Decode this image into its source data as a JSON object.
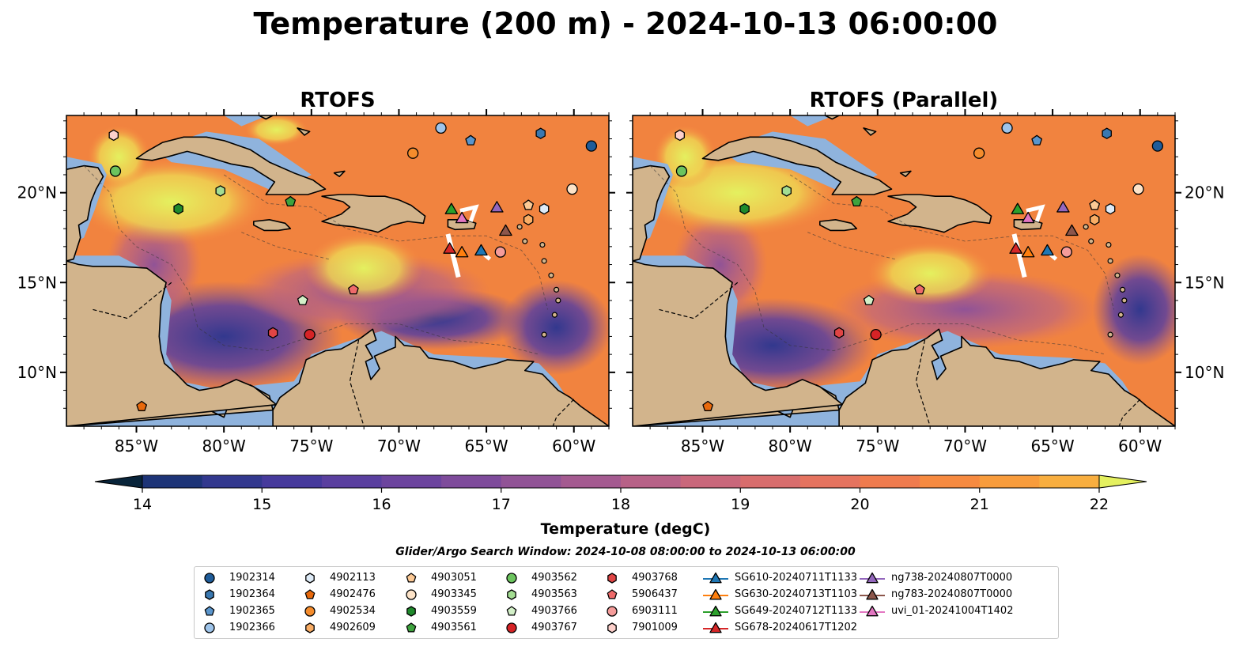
{
  "title": "Temperature (200 m) - 2024-10-13 06:00:00",
  "panels": [
    {
      "title": "RTOFS"
    },
    {
      "title": "RTOFS (Parallel)"
    }
  ],
  "map": {
    "lon_range": [
      -89,
      -58
    ],
    "lat_range": [
      7,
      24.3
    ],
    "x_ticks": [
      "85°W",
      "80°W",
      "75°W",
      "70°W",
      "65°W",
      "60°W"
    ],
    "y_ticks": [
      "10°N",
      "15°N",
      "20°N"
    ],
    "colors": {
      "land": "#d2b48c",
      "shelf": "#8fb3dd",
      "deep": "#062133"
    }
  },
  "colorbar": {
    "label": "Temperature (degC)",
    "ticks": [
      "14",
      "15",
      "16",
      "17",
      "18",
      "19",
      "20",
      "21",
      "22"
    ],
    "min": 14,
    "max": 22,
    "colors": [
      "#08243a",
      "#0e2c55",
      "#1d3477",
      "#32388e",
      "#463a9c",
      "#5a3f9f",
      "#6c449e",
      "#7e4b9b",
      "#915396",
      "#a45a90",
      "#b76187",
      "#c9677b",
      "#d86d6d",
      "#e5735f",
      "#ef7b4e",
      "#f68a40",
      "#f89c3c",
      "#f8ae3f",
      "#f5c247",
      "#efd853",
      "#e4f05f"
    ]
  },
  "search_window": "Glider/Argo Search Window: 2024-10-08 08:00:00 to 2024-10-13 06:00:00",
  "legend": [
    {
      "label": "1902314",
      "shape": "circle",
      "color": "#1f5c99"
    },
    {
      "label": "1902364",
      "shape": "hexagon",
      "color": "#3a78b0"
    },
    {
      "label": "1902365",
      "shape": "pentagon",
      "color": "#5a95cc"
    },
    {
      "label": "1902366",
      "shape": "circle",
      "color": "#9ec4ea"
    },
    {
      "label": "4902113",
      "shape": "hexagon",
      "color": "#deebf7"
    },
    {
      "label": "4902476",
      "shape": "pentagon",
      "color": "#e8690c"
    },
    {
      "label": "4902534",
      "shape": "circle",
      "color": "#f58c2c"
    },
    {
      "label": "4902609",
      "shape": "hexagon",
      "color": "#f9ad65"
    },
    {
      "label": "4903051",
      "shape": "pentagon",
      "color": "#fcc995"
    },
    {
      "label": "4903345",
      "shape": "circle",
      "color": "#fde3c8"
    },
    {
      "label": "4903559",
      "shape": "hexagon",
      "color": "#1f8a2c"
    },
    {
      "label": "4903561",
      "shape": "pentagon",
      "color": "#3ea33e"
    },
    {
      "label": "4903562",
      "shape": "circle",
      "color": "#6cc45e"
    },
    {
      "label": "4903563",
      "shape": "hexagon",
      "color": "#a3dd92"
    },
    {
      "label": "4903766",
      "shape": "pentagon",
      "color": "#d3f0c8"
    },
    {
      "label": "4903767",
      "shape": "circle",
      "color": "#d62326"
    },
    {
      "label": "4903768",
      "shape": "hexagon",
      "color": "#e04545"
    },
    {
      "label": "5906437",
      "shape": "pentagon",
      "color": "#ee6a6a"
    },
    {
      "label": "6903111",
      "shape": "circle",
      "color": "#f59c9a"
    },
    {
      "label": "7901009",
      "shape": "hexagon",
      "color": "#fdd0cb"
    },
    {
      "label": "SG610-20240711T1133",
      "shape": "triangle",
      "color": "#1f77b4"
    },
    {
      "label": "SG630-20240713T1103",
      "shape": "triangle",
      "color": "#ff7f0e"
    },
    {
      "label": "SG649-20240712T1133",
      "shape": "triangle",
      "color": "#2ca02c"
    },
    {
      "label": "SG678-20240617T1202",
      "shape": "triangle",
      "color": "#d62728"
    },
    {
      "label": "ng738-20240807T0000",
      "shape": "triangle",
      "color": "#9467bd"
    },
    {
      "label": "ng783-20240807T0000",
      "shape": "triangle",
      "color": "#8c564b"
    },
    {
      "label": "uvi_01-20241004T1402",
      "shape": "triangle",
      "color": "#e377c2"
    }
  ],
  "floats": [
    {
      "id": "1902314",
      "lon": -59,
      "lat": 22.6
    },
    {
      "id": "1902364",
      "lon": -61.9,
      "lat": 23.3
    },
    {
      "id": "1902365",
      "lon": -65.9,
      "lat": 22.9
    },
    {
      "id": "1902366",
      "lon": -67.6,
      "lat": 23.6
    },
    {
      "id": "4902113",
      "lon": -61.7,
      "lat": 19.1
    },
    {
      "id": "4902476",
      "lon": -84.7,
      "lat": 8.1
    },
    {
      "id": "4902534",
      "lon": -69.2,
      "lat": 22.2
    },
    {
      "id": "4902609",
      "lon": -62.6,
      "lat": 18.5
    },
    {
      "id": "4903051",
      "lon": -62.6,
      "lat": 19.3
    },
    {
      "id": "4903345",
      "lon": -60.1,
      "lat": 20.2
    },
    {
      "id": "4903559",
      "lon": -82.6,
      "lat": 19.1
    },
    {
      "id": "4903561",
      "lon": -76.2,
      "lat": 19.5
    },
    {
      "id": "4903562",
      "lon": -86.2,
      "lat": 21.2
    },
    {
      "id": "4903563",
      "lon": -80.2,
      "lat": 20.1
    },
    {
      "id": "4903766",
      "lon": -75.5,
      "lat": 14.0
    },
    {
      "id": "4903767",
      "lon": -75.1,
      "lat": 12.1
    },
    {
      "id": "4903768",
      "lon": -77.2,
      "lat": 12.2
    },
    {
      "id": "5906437",
      "lon": -72.6,
      "lat": 14.6
    },
    {
      "id": "6903111",
      "lon": -64.2,
      "lat": 16.7
    },
    {
      "id": "7901009",
      "lon": -86.3,
      "lat": 23.2
    }
  ],
  "gliders": [
    {
      "id": "SG610-20240711T1133",
      "lon": -65.3,
      "lat": 16.8
    },
    {
      "id": "SG630-20240713T1103",
      "lon": -66.4,
      "lat": 16.7
    },
    {
      "id": "SG649-20240712T1133",
      "lon": -67.0,
      "lat": 19.1
    },
    {
      "id": "SG678-20240617T1202",
      "lon": -67.1,
      "lat": 16.9
    },
    {
      "id": "ng738-20240807T0000",
      "lon": -64.4,
      "lat": 19.2
    },
    {
      "id": "ng783-20240807T0000",
      "lon": -63.9,
      "lat": 17.9
    },
    {
      "id": "uvi_01-20241004T1402",
      "lon": -66.4,
      "lat": 18.6
    }
  ]
}
